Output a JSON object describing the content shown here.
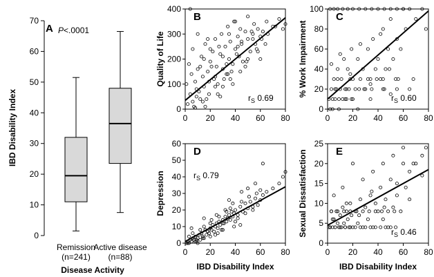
{
  "chart_data": [
    {
      "panel": "A",
      "type": "box",
      "xlabel": "Disease Activity",
      "ylabel": "IBD Disability Index",
      "ylim": [
        0,
        70
      ],
      "yticks": [
        0,
        10,
        20,
        30,
        40,
        50,
        60,
        70
      ],
      "annotation": "P<.0001",
      "categories": [
        {
          "label": "Remission",
          "n_label": "(n=241)",
          "min": 1.5,
          "q1": 11,
          "median": 19.5,
          "q3": 32,
          "max": 51.5
        },
        {
          "label": "Active disease",
          "n_label": "(n=88)",
          "min": 7.5,
          "q1": 23.5,
          "median": 36.5,
          "q3": 48,
          "max": 66.5
        }
      ]
    },
    {
      "panel": "B",
      "type": "scatter",
      "xlabel": "",
      "ylabel": "Quality of Life",
      "xlim": [
        0,
        80
      ],
      "ylim": [
        0,
        400
      ],
      "xticks": [
        0,
        20,
        40,
        60,
        80
      ],
      "yticks": [
        0,
        100,
        200,
        300,
        400
      ],
      "rs_label": "rS 0.69",
      "rs_position": "bottom-right",
      "fit": {
        "x": [
          0,
          80
        ],
        "y": [
          35,
          365
        ]
      },
      "x": [
        2,
        4,
        5,
        6,
        8,
        9,
        10,
        12,
        13,
        14,
        15,
        16,
        18,
        19,
        20,
        22,
        23,
        24,
        25,
        26,
        28,
        29,
        30,
        32,
        33,
        34,
        35,
        36,
        38,
        39,
        40,
        42,
        43,
        44,
        45,
        46,
        48,
        50,
        52,
        54,
        55,
        56,
        58,
        60,
        62,
        65,
        70,
        75,
        78,
        80,
        3,
        7,
        11,
        15,
        17,
        21,
        24,
        27,
        31,
        35,
        37,
        41,
        45,
        49,
        53,
        57,
        61,
        66,
        72,
        1,
        9,
        14,
        19,
        26,
        33,
        38,
        44,
        50,
        58,
        64,
        6,
        12,
        18,
        24,
        30,
        36,
        42,
        48,
        54,
        60,
        10,
        20,
        30,
        40,
        50,
        4,
        8,
        16,
        28,
        34
      ],
      "y": [
        20,
        60,
        140,
        30,
        110,
        80,
        160,
        40,
        210,
        130,
        90,
        260,
        150,
        60,
        190,
        230,
        120,
        280,
        170,
        100,
        220,
        300,
        160,
        250,
        140,
        330,
        200,
        270,
        180,
        350,
        240,
        290,
        210,
        320,
        260,
        190,
        310,
        280,
        230,
        300,
        340,
        260,
        320,
        290,
        310,
        350,
        330,
        360,
        320,
        340,
        180,
        10,
        70,
        200,
        40,
        170,
        90,
        250,
        120,
        300,
        150,
        220,
        270,
        190,
        310,
        240,
        280,
        300,
        330,
        100,
        50,
        30,
        110,
        60,
        180,
        100,
        150,
        200,
        230,
        260,
        240,
        170,
        280,
        130,
        210,
        120,
        250,
        170,
        280,
        200,
        300,
        240,
        90,
        350,
        370,
        400,
        5,
        10,
        50,
        140
      ]
    },
    {
      "panel": "C",
      "type": "scatter",
      "xlabel": "",
      "ylabel": "% Work Impairment",
      "xlim": [
        0,
        80
      ],
      "ylim": [
        0,
        100
      ],
      "xticks": [
        0,
        20,
        40,
        60,
        80
      ],
      "yticks": [
        0,
        20,
        40,
        60,
        80,
        100
      ],
      "rs_label": "rS 0.60",
      "rs_position": "bottom-right",
      "fit": {
        "x": [
          0,
          80
        ],
        "y": [
          10,
          98
        ]
      },
      "x": [
        1,
        2,
        3,
        4,
        5,
        6,
        7,
        8,
        9,
        10,
        11,
        12,
        13,
        14,
        15,
        16,
        17,
        18,
        19,
        20,
        22,
        24,
        26,
        28,
        30,
        32,
        34,
        36,
        38,
        40,
        42,
        44,
        46,
        48,
        50,
        52,
        55,
        58,
        60,
        62,
        65,
        70,
        75,
        78,
        2,
        5,
        8,
        12,
        16,
        20,
        25,
        30,
        35,
        40,
        45,
        50,
        55,
        60,
        4,
        9,
        14,
        19,
        24,
        29,
        34,
        39,
        44,
        49,
        54,
        3,
        10,
        18,
        26,
        34,
        42,
        50,
        6,
        15,
        25,
        35,
        45,
        55,
        65,
        8,
        20,
        32,
        44,
        56,
        68
      ],
      "y": [
        10,
        0,
        20,
        10,
        30,
        10,
        20,
        40,
        10,
        20,
        30,
        10,
        50,
        20,
        10,
        40,
        20,
        30,
        60,
        10,
        20,
        50,
        30,
        40,
        20,
        60,
        30,
        70,
        40,
        50,
        30,
        80,
        40,
        60,
        90,
        50,
        70,
        60,
        100,
        80,
        100,
        90,
        100,
        80,
        100,
        100,
        100,
        100,
        100,
        100,
        100,
        100,
        100,
        100,
        100,
        100,
        100,
        100,
        0,
        0,
        10,
        10,
        0,
        20,
        10,
        30,
        20,
        40,
        30,
        45,
        55,
        35,
        65,
        25,
        75,
        15,
        20,
        20,
        20,
        20,
        20,
        20,
        20,
        30,
        30,
        30,
        30,
        30,
        30
      ]
    },
    {
      "panel": "D",
      "type": "scatter",
      "xlabel": "IBD Disability Index",
      "ylabel": "Depression",
      "xlim": [
        0,
        80
      ],
      "ylim": [
        0,
        60
      ],
      "xticks": [
        0,
        20,
        40,
        60,
        80
      ],
      "yticks": [
        0,
        10,
        20,
        30,
        40,
        50,
        60
      ],
      "rs_label": "rS 0.79",
      "rs_position": "top-left",
      "fit": {
        "x": [
          0,
          80
        ],
        "y": [
          1,
          34
        ]
      },
      "x": [
        1,
        2,
        3,
        4,
        5,
        6,
        7,
        8,
        9,
        10,
        11,
        12,
        13,
        14,
        15,
        16,
        17,
        18,
        19,
        20,
        21,
        22,
        23,
        24,
        25,
        26,
        27,
        28,
        29,
        30,
        31,
        32,
        33,
        34,
        35,
        36,
        37,
        38,
        39,
        40,
        42,
        44,
        46,
        48,
        50,
        52,
        54,
        56,
        58,
        60,
        62,
        65,
        70,
        75,
        78,
        80,
        3,
        6,
        9,
        12,
        15,
        18,
        21,
        24,
        27,
        30,
        33,
        36,
        39,
        42,
        45,
        48,
        51,
        54,
        57,
        60,
        2,
        8,
        14,
        20,
        26,
        32,
        38,
        44,
        50,
        56,
        62,
        5,
        10,
        15,
        20,
        25,
        30,
        35,
        40,
        45
      ],
      "y": [
        0,
        1,
        0,
        2,
        1,
        3,
        2,
        4,
        1,
        3,
        5,
        2,
        6,
        4,
        3,
        8,
        5,
        7,
        6,
        9,
        8,
        11,
        7,
        10,
        12,
        9,
        13,
        11,
        8,
        14,
        12,
        16,
        13,
        15,
        17,
        14,
        19,
        16,
        18,
        20,
        17,
        22,
        19,
        24,
        21,
        25,
        20,
        27,
        23,
        26,
        29,
        31,
        33,
        36,
        40,
        43,
        4,
        6,
        2,
        8,
        10,
        7,
        14,
        5,
        16,
        12,
        19,
        21,
        10,
        15,
        25,
        18,
        28,
        22,
        30,
        32,
        0,
        1,
        3,
        12,
        6,
        20,
        24,
        11,
        33,
        36,
        48,
        9,
        0,
        15,
        4,
        17,
        8,
        26,
        13,
        31
      ]
    },
    {
      "panel": "E",
      "type": "scatter",
      "xlabel": "IBD Disability Index",
      "ylabel": "Sexual Dissatisfaction",
      "xlim": [
        0,
        80
      ],
      "ylim": [
        0,
        25
      ],
      "xticks": [
        0,
        20,
        40,
        60,
        80
      ],
      "yticks": [
        0,
        5,
        10,
        15,
        20,
        25
      ],
      "rs_label": "rS 0.46",
      "rs_position": "bottom-right",
      "fit": {
        "x": [
          0,
          80
        ],
        "y": [
          4.5,
          18.5
        ]
      },
      "x": [
        1,
        2,
        3,
        4,
        5,
        6,
        7,
        8,
        9,
        10,
        11,
        12,
        13,
        14,
        15,
        16,
        17,
        18,
        19,
        20,
        22,
        24,
        26,
        28,
        30,
        32,
        34,
        36,
        38,
        40,
        42,
        44,
        46,
        48,
        50,
        52,
        55,
        58,
        60,
        62,
        65,
        70,
        75,
        78,
        2,
        6,
        10,
        14,
        18,
        22,
        26,
        30,
        34,
        38,
        42,
        46,
        50,
        54,
        3,
        8,
        13,
        18,
        23,
        28,
        33,
        38,
        43,
        48,
        53,
        5,
        12,
        20,
        28,
        36,
        44,
        52,
        60,
        68,
        4,
        15,
        25,
        35,
        45,
        55,
        65,
        75
      ],
      "y": [
        4,
        4,
        8,
        4,
        6,
        4,
        8,
        5,
        4,
        7,
        4,
        9,
        5,
        4,
        8,
        6,
        4,
        10,
        7,
        4,
        8,
        5,
        11,
        4,
        9,
        6,
        12,
        4,
        10,
        8,
        14,
        6,
        11,
        4,
        16,
        9,
        12,
        8,
        20,
        14,
        18,
        20,
        22,
        24,
        4,
        4,
        4,
        4,
        4,
        4,
        4,
        4,
        4,
        4,
        4,
        4,
        4,
        4,
        8,
        8,
        8,
        8,
        8,
        8,
        8,
        8,
        8,
        8,
        8,
        12,
        14,
        20,
        16,
        18,
        20,
        22,
        24,
        20,
        6,
        10,
        7,
        13,
        9,
        15,
        11,
        17
      ]
    }
  ]
}
